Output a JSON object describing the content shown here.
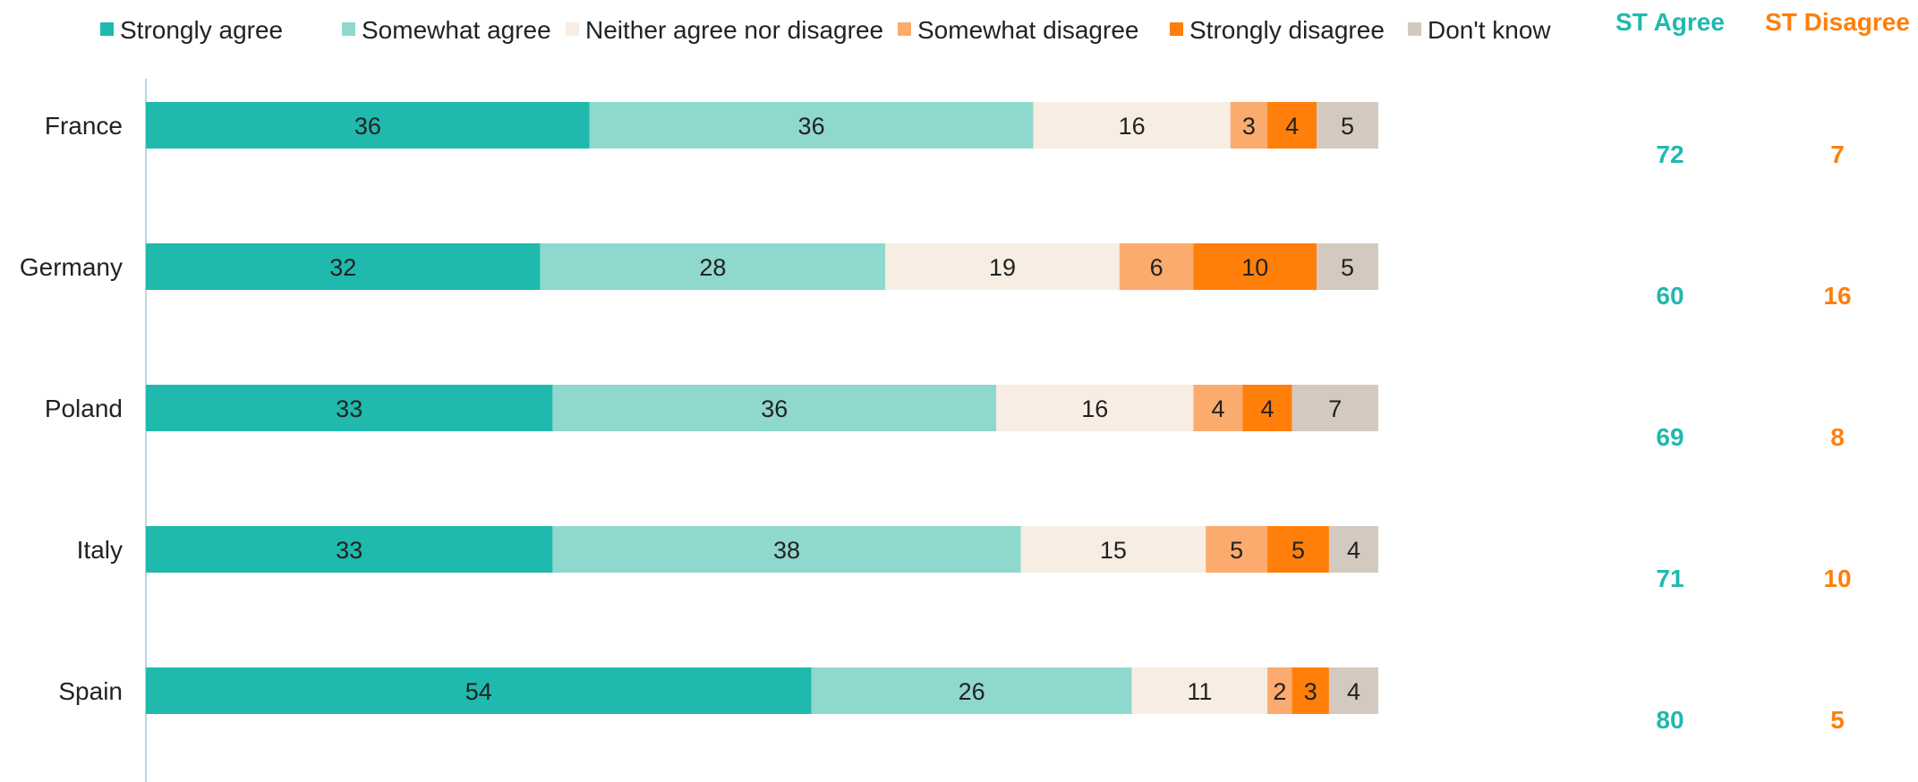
{
  "chart_data": {
    "type": "bar",
    "orientation": "horizontal",
    "stacked": true,
    "categories": [
      "France",
      "Germany",
      "Poland",
      "Italy",
      "Spain"
    ],
    "series": [
      {
        "name": "Strongly agree",
        "color": "#20b9ae",
        "values": [
          36,
          32,
          33,
          33,
          54
        ]
      },
      {
        "name": "Somewhat agree",
        "color": "#8fd8ce",
        "values": [
          36,
          28,
          36,
          38,
          26
        ]
      },
      {
        "name": "Neither agree nor disagree",
        "color": "#f7ede3",
        "values": [
          16,
          19,
          16,
          15,
          11
        ]
      },
      {
        "name": "Somewhat disagree",
        "color": "#fbab6d",
        "values": [
          3,
          6,
          4,
          5,
          2
        ]
      },
      {
        "name": "Strongly disagree",
        "color": "#ff7f0a",
        "values": [
          4,
          10,
          4,
          5,
          3
        ]
      },
      {
        "name": "Don't know",
        "color": "#d3c9bf",
        "values": [
          5,
          5,
          7,
          4,
          4
        ]
      }
    ],
    "xlim": [
      0,
      100
    ],
    "legend_position": "top",
    "grid": false,
    "summary_columns": [
      {
        "title": "ST Agree",
        "color": "#20b9ae",
        "values": [
          "72",
          "60",
          "69",
          "71",
          "80"
        ]
      },
      {
        "title": "ST Disagree",
        "color": "#ff7f0a",
        "values": [
          "7",
          "16",
          "8",
          "10",
          "5"
        ]
      }
    ]
  }
}
